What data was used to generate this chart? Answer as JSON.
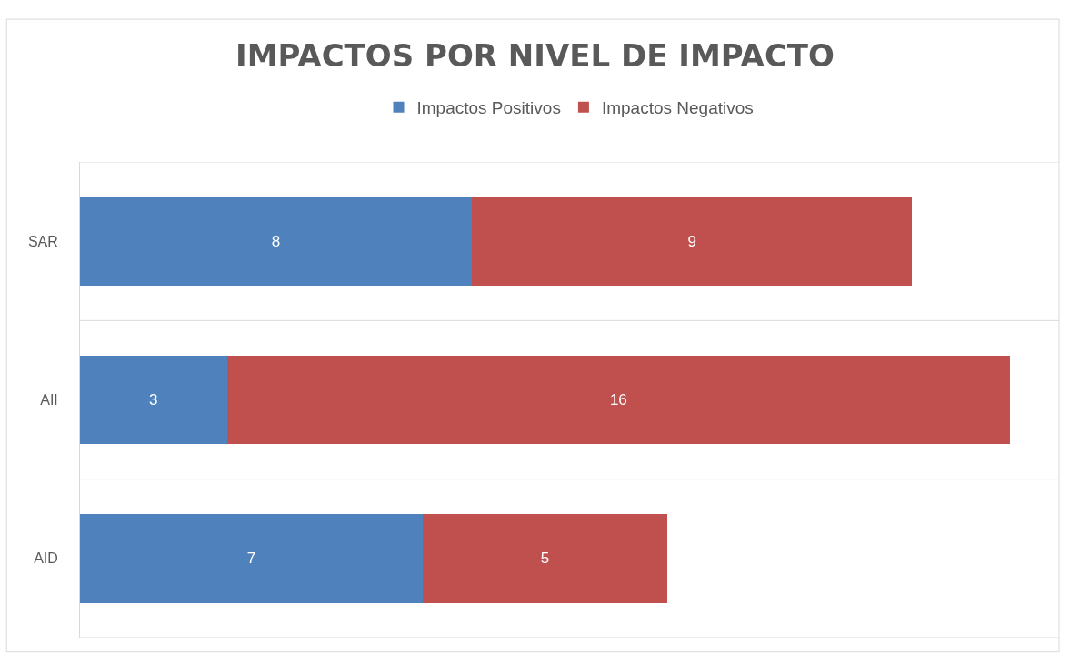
{
  "chart_data": {
    "type": "bar",
    "orientation": "horizontal",
    "stacked": true,
    "title": "IMPACTOS POR NIVEL DE IMPACTO",
    "categories": [
      "SAR",
      "AII",
      "AID"
    ],
    "series": [
      {
        "name": "Impactos Positivos",
        "color": "#4f81bd",
        "values": [
          8,
          3,
          7
        ]
      },
      {
        "name": "Impactos Negativos",
        "color": "#c0504d",
        "values": [
          9,
          16,
          5
        ]
      }
    ],
    "xlim": [
      0,
      20
    ],
    "tick_labels": "y",
    "data_labels": true,
    "grid": "y",
    "legend": "top"
  }
}
